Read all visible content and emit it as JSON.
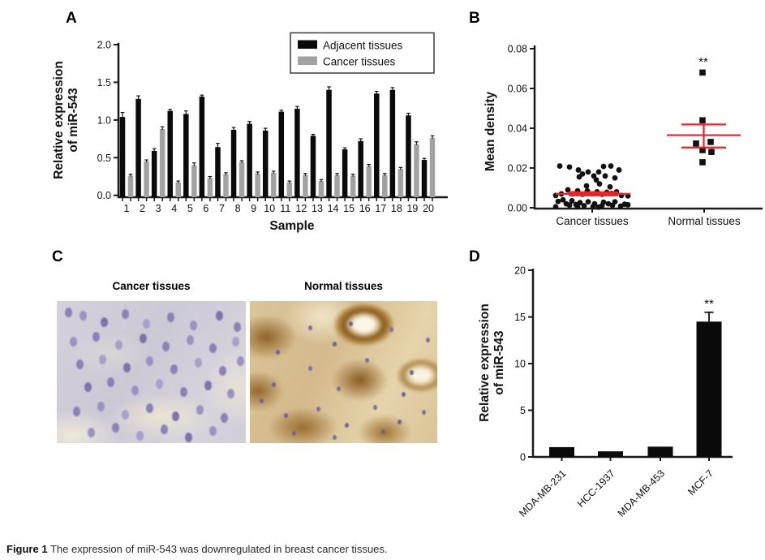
{
  "figure": {
    "caption_label": "Figure 1",
    "caption_text": "The expression of miR-543 was downregulated in breast cancer tissues.",
    "background": "#ffffff"
  },
  "panels": {
    "a": {
      "label": "A"
    },
    "b": {
      "label": "B"
    },
    "c": {
      "label": "C",
      "images": [
        {
          "title": "Cancer tissues"
        },
        {
          "title": "Normal tissues"
        }
      ]
    },
    "d": {
      "label": "D"
    }
  },
  "colors": {
    "black_bar": "#0a0a0a",
    "gray_bar": "#a2a2a2",
    "mean_line_red": "#ec2127",
    "axis": "#1a1a1a"
  },
  "chart_data": [
    {
      "panel": "A",
      "type": "bar",
      "xlabel": "Sample",
      "ylabel": "Relative expression of miR-543",
      "ylabel_lines": [
        "Relative expression",
        "of miR-543"
      ],
      "ylim": [
        0,
        2.0
      ],
      "ytick_labels": [
        "0.0",
        "0.5",
        "1.0",
        "1.5",
        "2.0"
      ],
      "categories": [
        "1",
        "2",
        "3",
        "4",
        "5",
        "6",
        "7",
        "8",
        "9",
        "10",
        "11",
        "12",
        "13",
        "14",
        "15",
        "16",
        "17",
        "18",
        "19",
        "20"
      ],
      "series": [
        {
          "name": "Adjacent tissues",
          "color": "#0a0a0a",
          "values": [
            1.04,
            1.28,
            0.59,
            1.12,
            1.08,
            1.31,
            0.64,
            0.87,
            0.95,
            0.86,
            1.11,
            1.15,
            0.79,
            1.4,
            0.61,
            0.72,
            1.35,
            1.4,
            1.06,
            0.47
          ],
          "errors": [
            0.06,
            0.04,
            0.03,
            0.02,
            0.04,
            0.02,
            0.05,
            0.03,
            0.03,
            0.03,
            0.02,
            0.03,
            0.02,
            0.04,
            0.02,
            0.03,
            0.03,
            0.03,
            0.03,
            0.02
          ]
        },
        {
          "name": "Cancer tissues",
          "color": "#a2a2a2",
          "values": [
            0.26,
            0.45,
            0.88,
            0.17,
            0.4,
            0.23,
            0.28,
            0.44,
            0.29,
            0.3,
            0.17,
            0.27,
            0.19,
            0.27,
            0.26,
            0.39,
            0.27,
            0.35,
            0.68,
            0.76
          ],
          "errors": [
            0.02,
            0.02,
            0.03,
            0.02,
            0.03,
            0.02,
            0.02,
            0.02,
            0.02,
            0.02,
            0.02,
            0.02,
            0.02,
            0.02,
            0.02,
            0.02,
            0.02,
            0.02,
            0.03,
            0.03
          ]
        }
      ],
      "legend": [
        "Adjacent tissues",
        "Cancer tissues"
      ],
      "legend_position": "top-right",
      "grid": false
    },
    {
      "panel": "B",
      "type": "scatter",
      "ylabel": "Mean density",
      "ylim": [
        0,
        0.08
      ],
      "ytick_labels": [
        "0.00",
        "0.02",
        "0.04",
        "0.06",
        "0.08"
      ],
      "categories": [
        "Cancer tissues",
        "Normal tissues"
      ],
      "mean_line_color": "#ec2127",
      "groups": [
        {
          "name": "Cancer tissues",
          "marker": "circle",
          "mean": 0.007,
          "err_high": 0.0078,
          "err_low": 0.0062,
          "points": [
            [
              0.021,
              -40
            ],
            [
              0.0205,
              -28
            ],
            [
              0.019,
              -17
            ],
            [
              0.021,
              23
            ],
            [
              0.0208,
              14
            ],
            [
              0.019,
              33
            ],
            [
              0.018,
              -5
            ],
            [
              0.018,
              8
            ],
            [
              0.017,
              -12
            ],
            [
              0.016,
              2
            ],
            [
              0.0155,
              -16
            ],
            [
              0.015,
              28
            ],
            [
              0.014,
              5
            ],
            [
              0.016,
              16
            ],
            [
              0.012,
              9
            ],
            [
              0.011,
              -7
            ],
            [
              0.0105,
              22
            ],
            [
              0.009,
              -30
            ],
            [
              0.0085,
              -18
            ],
            [
              0.0085,
              -6
            ],
            [
              0.008,
              6
            ],
            [
              0.0078,
              18
            ],
            [
              0.008,
              30
            ],
            [
              0.007,
              -38
            ],
            [
              0.007,
              -24
            ],
            [
              0.0068,
              -12
            ],
            [
              0.007,
              0
            ],
            [
              0.0068,
              12
            ],
            [
              0.0072,
              24
            ],
            [
              0.0062,
              36
            ],
            [
              0.006,
              44
            ],
            [
              0.0062,
              -45
            ],
            [
              0.004,
              -36
            ],
            [
              0.0032,
              -42
            ],
            [
              0.0035,
              -25
            ],
            [
              0.002,
              -32
            ],
            [
              0.0026,
              -15
            ],
            [
              0.003,
              -5
            ],
            [
              0.002,
              3
            ],
            [
              0.0016,
              -20
            ],
            [
              0.001,
              -10
            ],
            [
              0.001,
              12
            ],
            [
              0.0006,
              1
            ],
            [
              0.002,
              20
            ],
            [
              0.003,
              28
            ],
            [
              0.0012,
              25
            ],
            [
              0.0008,
              35
            ],
            [
              0.0018,
              40
            ],
            [
              0.0028,
              14
            ],
            [
              0.0013,
              -28
            ],
            [
              0.0005,
              -18
            ],
            [
              0.0003,
              8
            ],
            [
              0.0015,
              44
            ],
            [
              0.0005,
              -45
            ]
          ]
        },
        {
          "name": "Normal tissues",
          "marker": "square",
          "mean": 0.0365,
          "err_high": 0.0419,
          "err_low": 0.0303,
          "significance": "**",
          "points": [
            [
              0.068,
              -2
            ],
            [
              0.044,
              -2
            ],
            [
              0.0331,
              8
            ],
            [
              0.0323,
              -10
            ],
            [
              0.029,
              -2
            ],
            [
              0.0281,
              9
            ],
            [
              0.0229,
              -2
            ]
          ]
        }
      ],
      "grid": false
    },
    {
      "panel": "D",
      "type": "bar",
      "ylabel": "Relative expression of miR-543",
      "ylabel_lines": [
        "Relative expression",
        "of miR-543"
      ],
      "ylim": [
        0,
        20
      ],
      "ytick_labels": [
        "0",
        "5",
        "10",
        "15",
        "20"
      ],
      "categories": [
        "MDA-MB-231",
        "HCC-1937",
        "MDA-MB-453",
        "MCF-7"
      ],
      "values": [
        1.05,
        0.6,
        1.1,
        14.5
      ],
      "errors": [
        0,
        0,
        0,
        1.0
      ],
      "significance": [
        null,
        null,
        null,
        "**"
      ],
      "bar_color": "#0a0a0a",
      "grid": false
    }
  ]
}
